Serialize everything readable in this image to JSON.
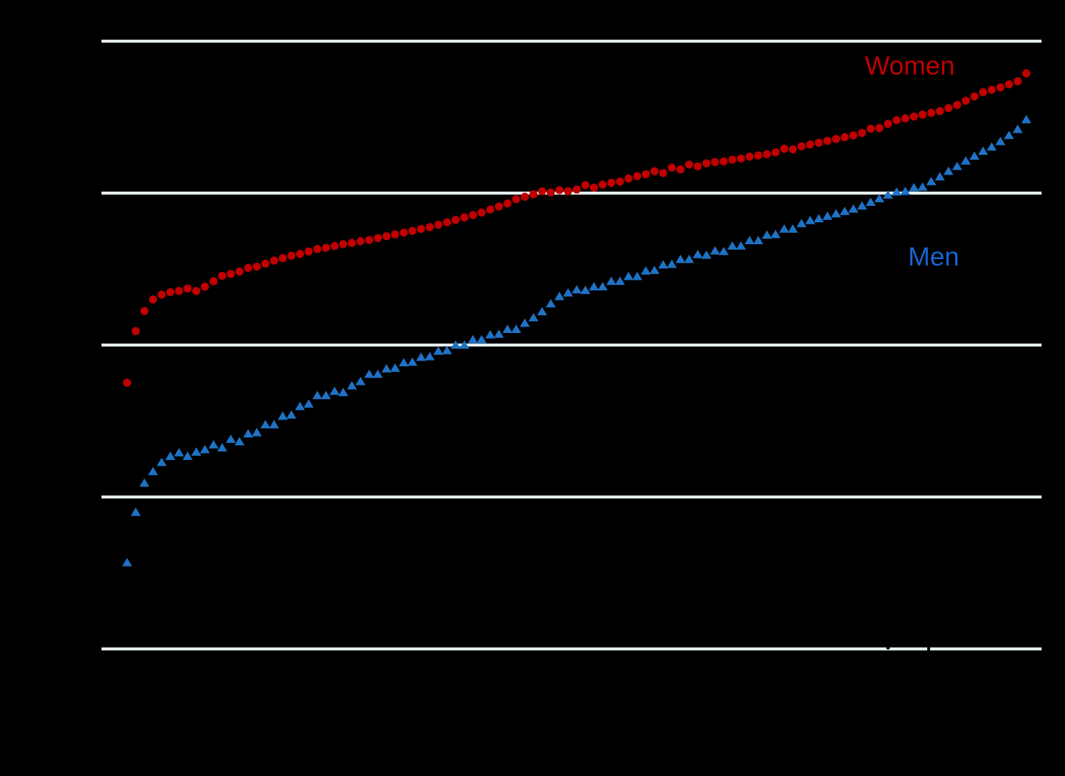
{
  "colors": {
    "background": "#000000",
    "gridline": "#E5EDEF",
    "women": "#C00000",
    "women_label": "#C00000",
    "men": "#1F72C4",
    "men_label": "#1565D0"
  },
  "chart_data": {
    "type": "scatter",
    "title": "",
    "axes": {
      "x": {
        "tick_labels_visible": false,
        "label_visible": false,
        "note": "categories (e.g. countries) sorted ascending; labels not visible"
      },
      "y": {
        "tick_labels_visible": false,
        "range": [
          0,
          100
        ],
        "gridline_values": [
          0,
          25,
          50,
          75,
          100
        ],
        "note": "tick text not visible (black text on transparent background); values estimated from gridlines"
      }
    },
    "legend": {
      "type": "inline-annotations",
      "entries": [
        "Women",
        "Men"
      ]
    },
    "series": [
      {
        "name": "Women",
        "marker": "circle",
        "color": "#C00000",
        "label_color": "#C00000",
        "values": [
          43.8,
          52.3,
          55.6,
          57.5,
          58.3,
          58.7,
          58.9,
          59.3,
          58.9,
          59.6,
          60.5,
          61.4,
          61.7,
          62.1,
          62.7,
          62.9,
          63.4,
          63.9,
          64.3,
          64.7,
          65.0,
          65.4,
          65.8,
          66.0,
          66.3,
          66.6,
          66.8,
          67.1,
          67.3,
          67.6,
          67.9,
          68.2,
          68.5,
          68.8,
          69.1,
          69.4,
          69.8,
          70.2,
          70.6,
          71.0,
          71.4,
          71.8,
          72.3,
          72.8,
          73.3,
          74.0,
          74.4,
          74.8,
          75.3,
          75.1,
          75.5,
          75.3,
          75.6,
          76.3,
          75.9,
          76.4,
          76.7,
          76.9,
          77.4,
          77.8,
          78.1,
          78.6,
          78.3,
          79.2,
          78.9,
          79.7,
          79.4,
          79.9,
          80.1,
          80.2,
          80.5,
          80.7,
          81.0,
          81.2,
          81.4,
          81.7,
          82.3,
          82.2,
          82.7,
          83.0,
          83.3,
          83.6,
          83.9,
          84.2,
          84.5,
          84.9,
          85.6,
          85.7,
          86.4,
          87.0,
          87.3,
          87.6,
          87.9,
          88.2,
          88.5,
          89.0,
          89.5,
          90.2,
          90.9,
          91.6,
          92.0,
          92.4,
          92.9,
          93.4,
          94.7
        ]
      },
      {
        "name": "Men",
        "marker": "triangle-up",
        "color": "#1F72C4",
        "label_color": "#1565D0",
        "values": [
          14.2,
          22.5,
          27.3,
          29.2,
          30.7,
          31.7,
          32.3,
          31.7,
          32.4,
          32.8,
          33.6,
          33.1,
          34.5,
          34.1,
          35.4,
          35.6,
          36.9,
          36.9,
          38.3,
          38.5,
          39.9,
          40.3,
          41.7,
          41.7,
          42.4,
          42.2,
          43.3,
          44.0,
          45.2,
          45.2,
          46.1,
          46.2,
          47.1,
          47.2,
          48.0,
          48.1,
          49.0,
          49.1,
          50.0,
          50.0,
          50.9,
          50.9,
          51.7,
          51.8,
          52.6,
          52.6,
          53.6,
          54.5,
          55.5,
          56.8,
          58.0,
          58.6,
          59.1,
          59.0,
          59.6,
          59.6,
          60.5,
          60.5,
          61.3,
          61.3,
          62.2,
          62.3,
          63.2,
          63.3,
          64.1,
          64.1,
          64.9,
          64.8,
          65.5,
          65.4,
          66.3,
          66.3,
          67.2,
          67.2,
          68.1,
          68.2,
          69.1,
          69.1,
          70.0,
          70.5,
          70.8,
          71.2,
          71.6,
          72.0,
          72.4,
          72.9,
          73.5,
          74.1,
          74.7,
          75.2,
          75.3,
          75.9,
          76.0,
          76.9,
          77.7,
          78.6,
          79.4,
          80.3,
          81.1,
          81.9,
          82.6,
          83.5,
          84.5,
          85.5,
          87.1
        ]
      }
    ]
  }
}
